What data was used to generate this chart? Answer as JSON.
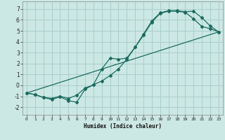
{
  "bg_color": "#cce8e4",
  "grid_color": "#a8ceca",
  "line_color": "#1a6b60",
  "xlabel": "Humidex (Indice chaleur)",
  "xlim": [
    -0.5,
    23.5
  ],
  "ylim": [
    -2.7,
    7.7
  ],
  "yticks": [
    -2,
    -1,
    0,
    1,
    2,
    3,
    4,
    5,
    6,
    7
  ],
  "xticks": [
    0,
    1,
    2,
    3,
    4,
    5,
    6,
    7,
    8,
    9,
    10,
    11,
    12,
    13,
    14,
    15,
    16,
    17,
    18,
    19,
    20,
    21,
    22,
    23
  ],
  "line1_x": [
    0,
    1,
    2,
    3,
    4,
    5,
    6,
    7,
    8,
    9,
    10,
    11,
    12,
    13,
    14,
    15,
    16,
    17,
    18,
    19,
    20,
    21,
    22,
    23
  ],
  "line1_y": [
    -0.7,
    -0.85,
    -1.1,
    -1.2,
    -1.0,
    -1.2,
    -0.9,
    -0.25,
    0.05,
    0.4,
    0.9,
    1.5,
    2.4,
    3.5,
    4.7,
    5.9,
    6.65,
    6.85,
    6.85,
    6.75,
    6.8,
    6.2,
    5.45,
    4.9
  ],
  "line2_x": [
    0,
    1,
    2,
    3,
    4,
    5,
    6,
    7,
    8,
    9,
    10,
    11,
    12,
    13,
    14,
    15,
    16,
    17,
    18,
    19,
    20,
    21,
    22,
    23
  ],
  "line2_y": [
    -0.7,
    -0.85,
    -1.1,
    -1.3,
    -1.05,
    -1.4,
    -1.55,
    -0.35,
    0.05,
    1.5,
    2.5,
    2.4,
    2.5,
    3.5,
    4.6,
    5.8,
    6.6,
    6.8,
    6.8,
    6.7,
    6.1,
    5.4,
    5.2,
    4.9
  ],
  "line3_x": [
    0,
    23
  ],
  "line3_y": [
    -0.7,
    4.9
  ]
}
